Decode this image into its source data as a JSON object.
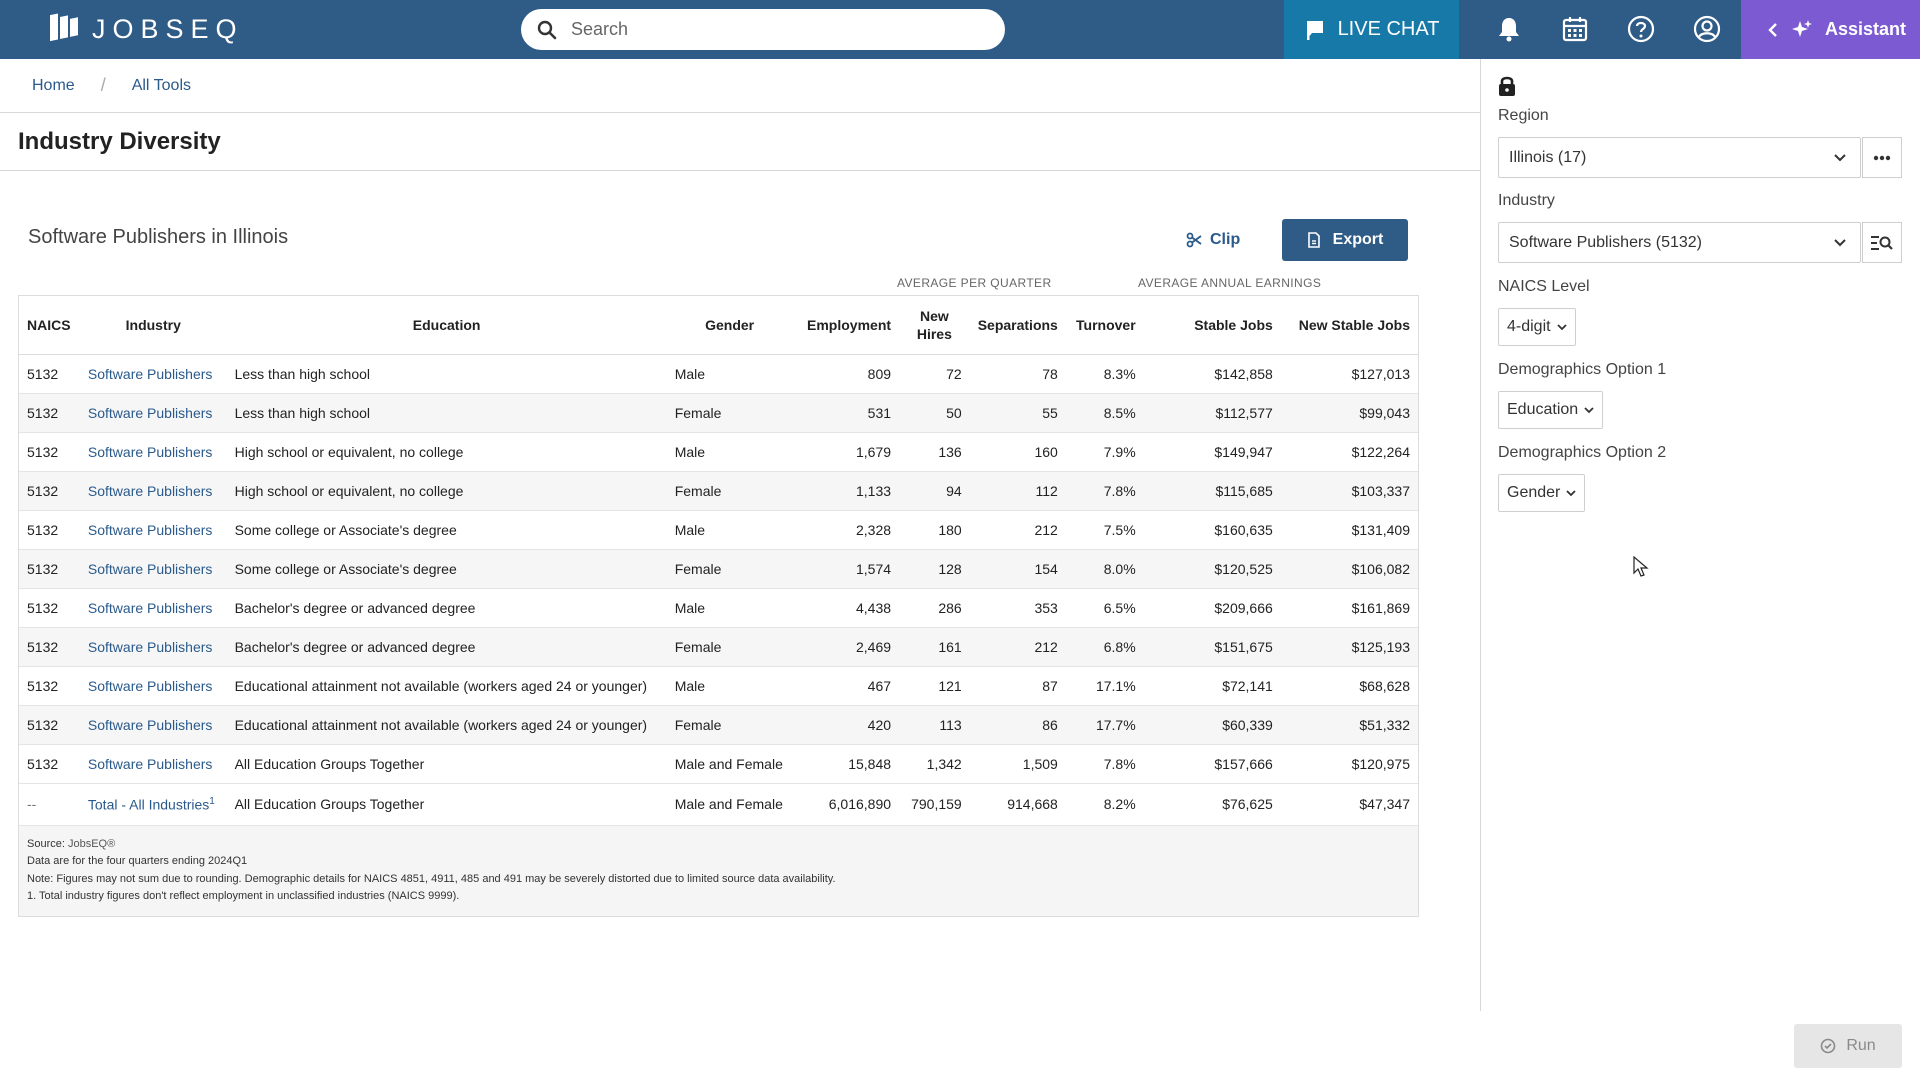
{
  "app": {
    "logo_text": "JOBSEQ"
  },
  "topbar": {
    "search_placeholder": "Search",
    "live_chat": "LIVE CHAT",
    "assistant": "Assistant",
    "icons": [
      "bell-icon",
      "calendar-icon",
      "help-icon",
      "account-icon"
    ]
  },
  "breadcrumb": {
    "home": "Home",
    "all_tools": "All Tools",
    "separator": "/"
  },
  "page": {
    "title": "Industry Diversity"
  },
  "report": {
    "title": "Software Publishers in Illinois",
    "clip_label": "Clip",
    "export_label": "Export",
    "group_headers": {
      "avg_per_quarter": "AVERAGE PER QUARTER",
      "avg_annual_earnings": "AVERAGE ANNUAL EARNINGS"
    },
    "columns": {
      "naics": "NAICS",
      "industry": "Industry",
      "education": "Education",
      "gender": "Gender",
      "employment": "Employment",
      "new_hires_1": "New",
      "new_hires_2": "Hires",
      "separations": "Separations",
      "turnover": "Turnover",
      "stable_jobs": "Stable Jobs",
      "new_stable_jobs": "New Stable Jobs"
    },
    "rows": [
      {
        "naics": "5132",
        "industry": "Software Publishers",
        "education": "Less than high school",
        "gender": "Male",
        "employment": "809",
        "new_hires": "72",
        "separations": "78",
        "turnover": "8.3%",
        "stable": "$142,858",
        "new_stable": "$127,013"
      },
      {
        "naics": "5132",
        "industry": "Software Publishers",
        "education": "Less than high school",
        "gender": "Female",
        "employment": "531",
        "new_hires": "50",
        "separations": "55",
        "turnover": "8.5%",
        "stable": "$112,577",
        "new_stable": "$99,043"
      },
      {
        "naics": "5132",
        "industry": "Software Publishers",
        "education": "High school or equivalent, no college",
        "gender": "Male",
        "employment": "1,679",
        "new_hires": "136",
        "separations": "160",
        "turnover": "7.9%",
        "stable": "$149,947",
        "new_stable": "$122,264"
      },
      {
        "naics": "5132",
        "industry": "Software Publishers",
        "education": "High school or equivalent, no college",
        "gender": "Female",
        "employment": "1,133",
        "new_hires": "94",
        "separations": "112",
        "turnover": "7.8%",
        "stable": "$115,685",
        "new_stable": "$103,337"
      },
      {
        "naics": "5132",
        "industry": "Software Publishers",
        "education": "Some college or Associate's degree",
        "gender": "Male",
        "employment": "2,328",
        "new_hires": "180",
        "separations": "212",
        "turnover": "7.5%",
        "stable": "$160,635",
        "new_stable": "$131,409"
      },
      {
        "naics": "5132",
        "industry": "Software Publishers",
        "education": "Some college or Associate's degree",
        "gender": "Female",
        "employment": "1,574",
        "new_hires": "128",
        "separations": "154",
        "turnover": "8.0%",
        "stable": "$120,525",
        "new_stable": "$106,082"
      },
      {
        "naics": "5132",
        "industry": "Software Publishers",
        "education": "Bachelor's degree or advanced degree",
        "gender": "Male",
        "employment": "4,438",
        "new_hires": "286",
        "separations": "353",
        "turnover": "6.5%",
        "stable": "$209,666",
        "new_stable": "$161,869"
      },
      {
        "naics": "5132",
        "industry": "Software Publishers",
        "education": "Bachelor's degree or advanced degree",
        "gender": "Female",
        "employment": "2,469",
        "new_hires": "161",
        "separations": "212",
        "turnover": "6.8%",
        "stable": "$151,675",
        "new_stable": "$125,193"
      },
      {
        "naics": "5132",
        "industry": "Software Publishers",
        "education": "Educational attainment not available (workers aged 24 or younger)",
        "gender": "Male",
        "employment": "467",
        "new_hires": "121",
        "separations": "87",
        "turnover": "17.1%",
        "stable": "$72,141",
        "new_stable": "$68,628"
      },
      {
        "naics": "5132",
        "industry": "Software Publishers",
        "education": "Educational attainment not available (workers aged 24 or younger)",
        "gender": "Female",
        "employment": "420",
        "new_hires": "113",
        "separations": "86",
        "turnover": "17.7%",
        "stable": "$60,339",
        "new_stable": "$51,332"
      },
      {
        "naics": "5132",
        "industry": "Software Publishers",
        "education": "All Education Groups Together",
        "gender": "Male and Female",
        "employment": "15,848",
        "new_hires": "1,342",
        "separations": "1,509",
        "turnover": "7.8%",
        "stable": "$157,666",
        "new_stable": "$120,975"
      }
    ],
    "total_row": {
      "naics": "--",
      "industry": "Total - All Industries",
      "footnote": "1",
      "education": "All Education Groups Together",
      "gender": "Male and Female",
      "employment": "6,016,890",
      "new_hires": "790,159",
      "separations": "914,668",
      "turnover": "8.2%",
      "stable": "$76,625",
      "new_stable": "$47,347"
    },
    "notes": {
      "source_label": "Source:",
      "source_value": "JobsEQ®",
      "line1": "Data are for the four quarters ending 2024Q1",
      "line2": "Note: Figures may not sum due to rounding. Demographic details for NAICS 4851, 4911, 485 and 491 may be severely distorted due to limited source data availability.",
      "line3": "1. Total industry figures don't reflect employment in unclassified industries (NAICS 9999)."
    }
  },
  "panel": {
    "region_label": "Region",
    "region_value": "Illinois (17)",
    "industry_label": "Industry",
    "industry_value": "Software Publishers (5132)",
    "naics_label": "NAICS Level",
    "naics_value": "4-digit",
    "demo1_label": "Demographics Option 1",
    "demo1_value": "Education",
    "demo2_label": "Demographics Option 2",
    "demo2_value": "Gender",
    "run_label": "Run"
  },
  "colors": {
    "topbar": "#2f5b87",
    "live_chat": "#1779a8",
    "assistant": "#7b5ad2",
    "link": "#2a5a8c"
  }
}
